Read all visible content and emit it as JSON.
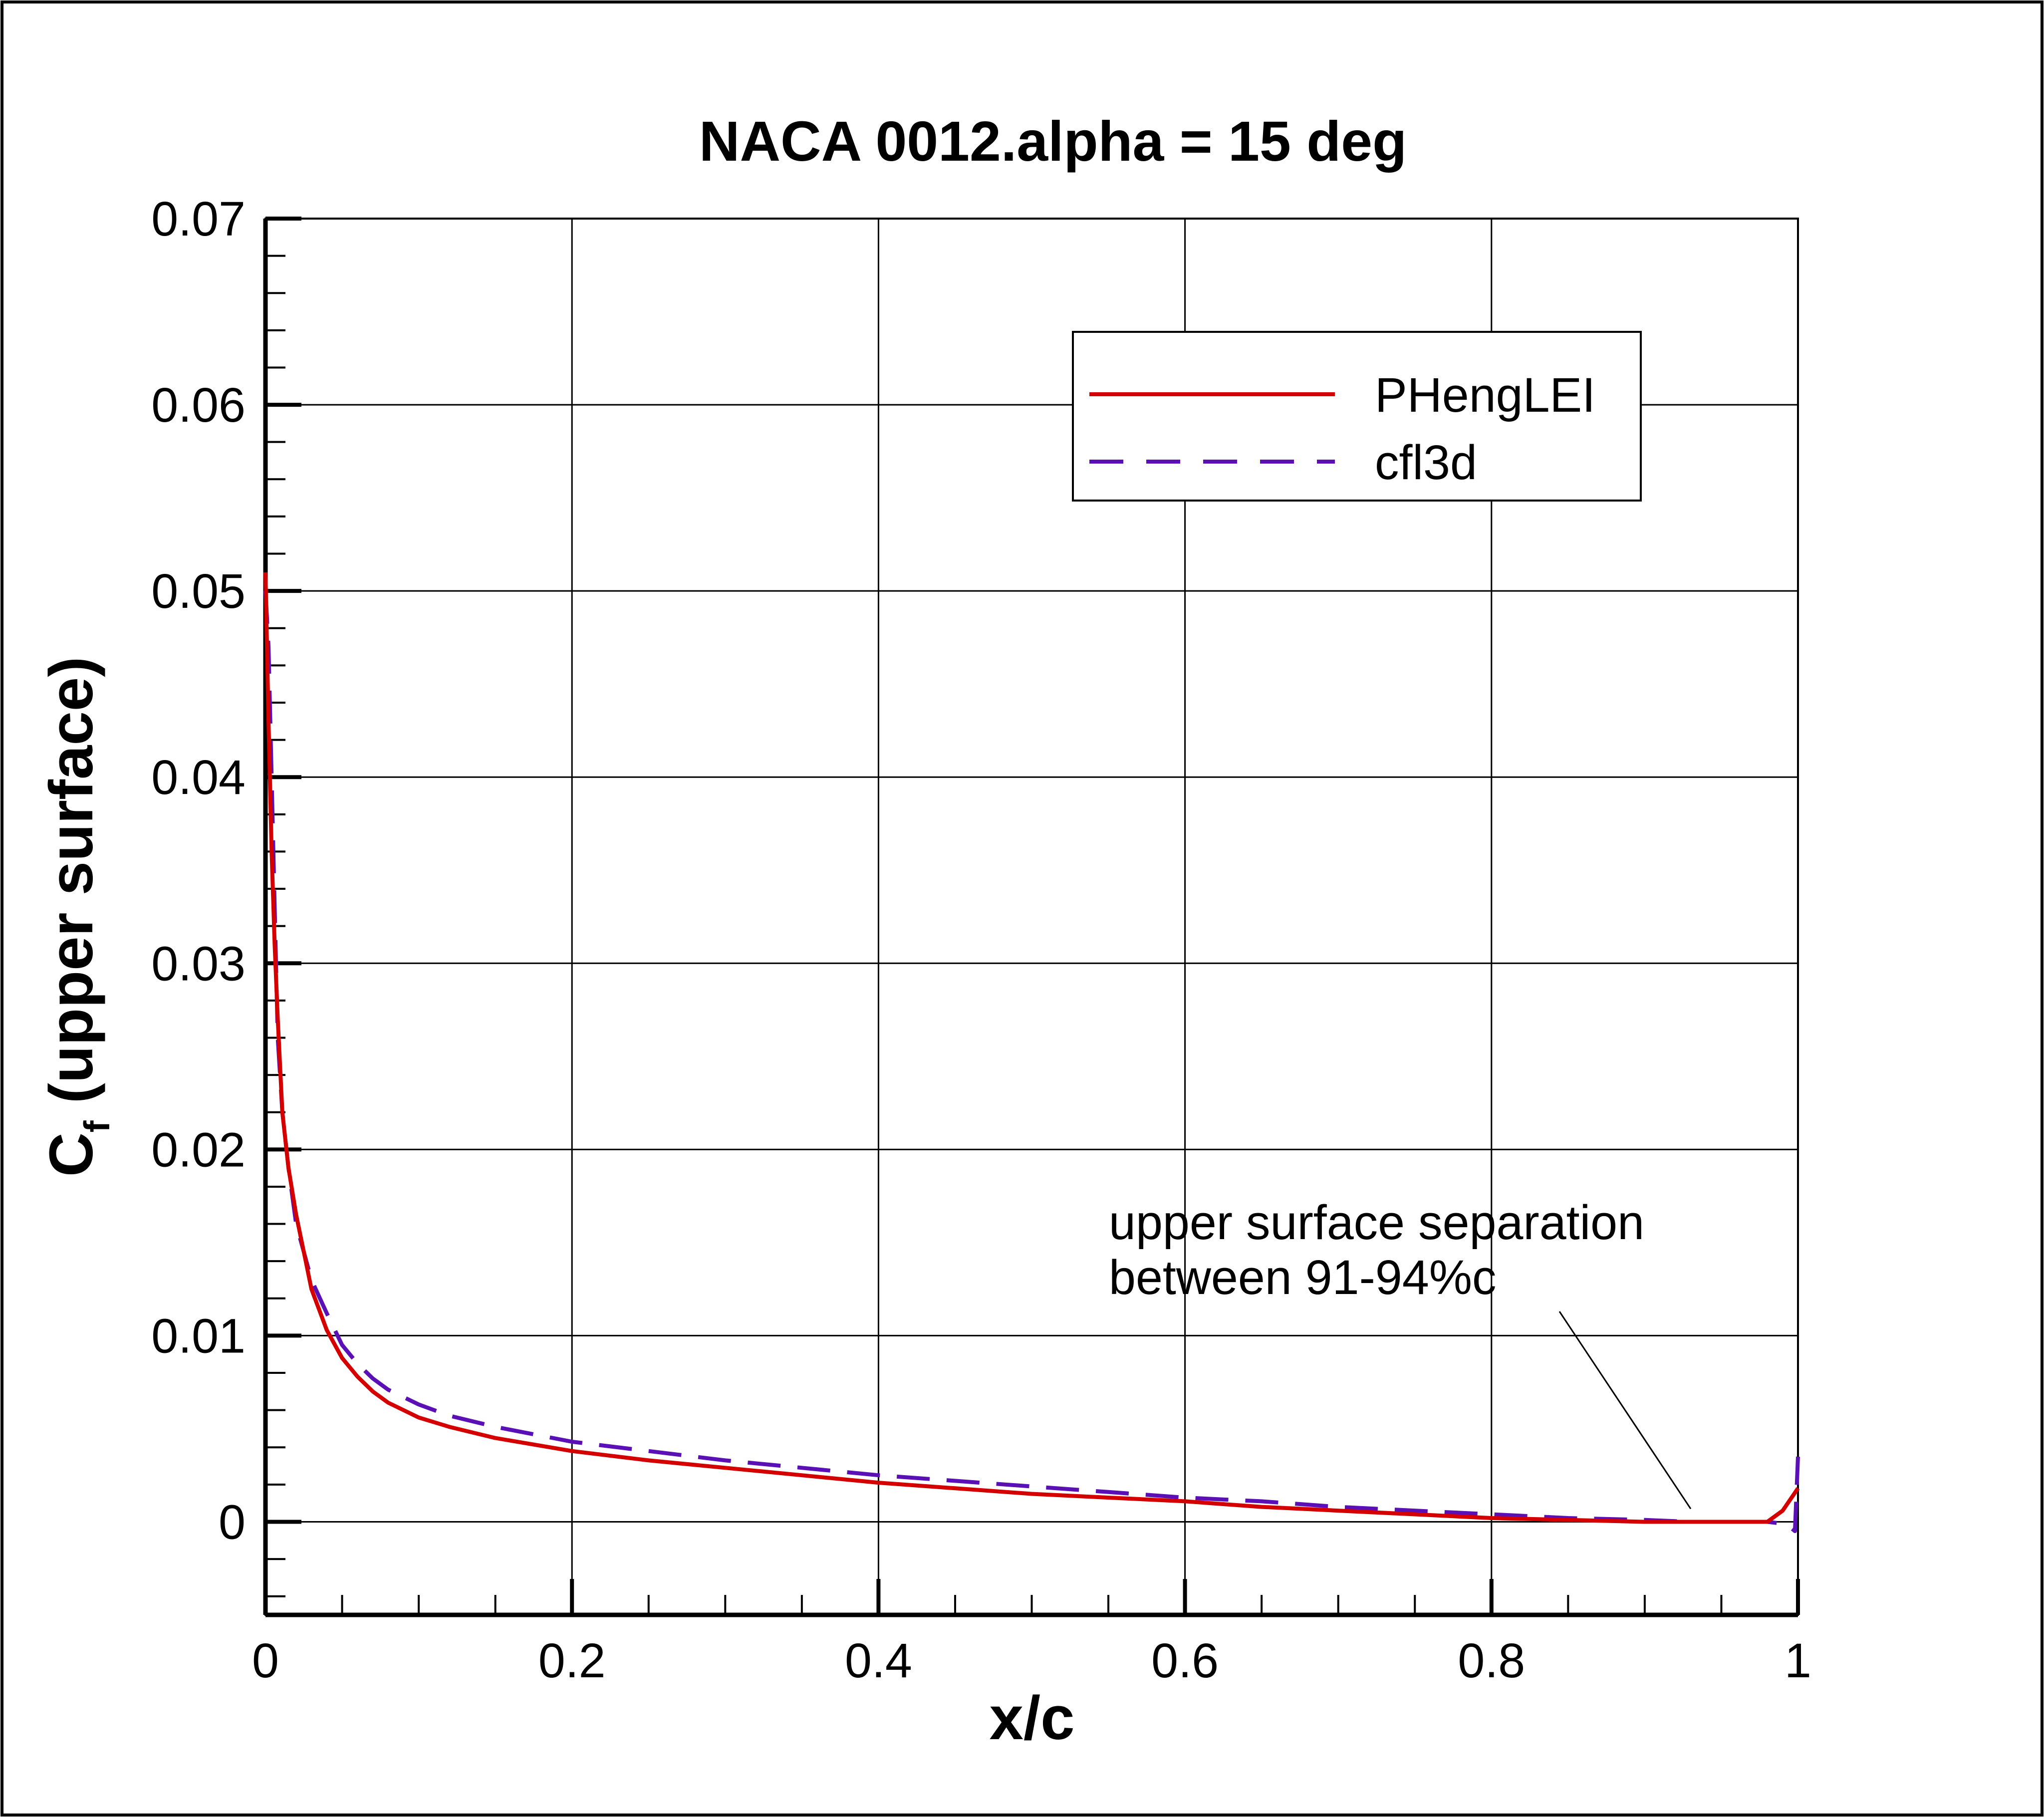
{
  "chart_data": {
    "type": "line",
    "title": "NACA 0012.alpha = 15 deg",
    "xlabel": "x/c",
    "ylabel": {
      "base": "C",
      "subscript": "f",
      "rest": " (upper surface)"
    },
    "xlim": [
      0,
      1
    ],
    "ylim": [
      -0.005,
      0.07
    ],
    "xticks": [
      0,
      0.2,
      0.4,
      0.6,
      0.8,
      1
    ],
    "xtick_labels": [
      "0",
      "0.2",
      "0.4",
      "0.6",
      "0.8",
      "1"
    ],
    "yticks": [
      0,
      0.01,
      0.02,
      0.03,
      0.04,
      0.05,
      0.06,
      0.07
    ],
    "ytick_labels": [
      "0",
      "0.01",
      "0.02",
      "0.03",
      "0.04",
      "0.05",
      "0.06",
      "0.07"
    ],
    "grid": true,
    "legend_position": "top-right",
    "series": [
      {
        "name": "PHengLEI",
        "color": "#d40000",
        "style": "solid",
        "x": [
          0,
          0.002,
          0.004,
          0.006,
          0.008,
          0.011,
          0.015,
          0.02,
          0.025,
          0.03,
          0.04,
          0.05,
          0.06,
          0.07,
          0.08,
          0.1,
          0.12,
          0.15,
          0.2,
          0.25,
          0.3,
          0.35,
          0.4,
          0.45,
          0.5,
          0.55,
          0.6,
          0.65,
          0.7,
          0.75,
          0.8,
          0.85,
          0.9,
          0.93,
          0.96,
          0.98,
          0.99,
          0.995,
          1.0
        ],
        "y": [
          0.051,
          0.043,
          0.036,
          0.031,
          0.027,
          0.022,
          0.019,
          0.0165,
          0.0145,
          0.0125,
          0.0103,
          0.0088,
          0.0078,
          0.007,
          0.0064,
          0.0056,
          0.0051,
          0.0045,
          0.0038,
          0.0033,
          0.0029,
          0.0025,
          0.0021,
          0.0018,
          0.0015,
          0.0013,
          0.0011,
          0.0008,
          0.0006,
          0.0004,
          0.0002,
          0.0001,
          0.0,
          0.0,
          0.0,
          0.0,
          0.0006,
          0.0012,
          0.0018
        ]
      },
      {
        "name": "cfl3d",
        "color": "#5a10b4",
        "style": "dashed",
        "x": [
          0,
          0.002,
          0.004,
          0.006,
          0.008,
          0.011,
          0.015,
          0.02,
          0.025,
          0.03,
          0.04,
          0.05,
          0.06,
          0.07,
          0.08,
          0.1,
          0.12,
          0.15,
          0.2,
          0.25,
          0.3,
          0.35,
          0.4,
          0.45,
          0.5,
          0.55,
          0.6,
          0.65,
          0.7,
          0.75,
          0.8,
          0.85,
          0.9,
          0.93,
          0.96,
          0.98,
          0.99,
          0.995,
          0.998,
          1.0
        ],
        "y": [
          0.05,
          0.047,
          0.04,
          0.033,
          0.026,
          0.022,
          0.019,
          0.016,
          0.0145,
          0.013,
          0.0112,
          0.0095,
          0.0085,
          0.0077,
          0.0071,
          0.0063,
          0.0057,
          0.0051,
          0.0043,
          0.0038,
          0.0033,
          0.0029,
          0.0025,
          0.0022,
          0.0019,
          0.0016,
          0.0013,
          0.0011,
          0.0008,
          0.0006,
          0.0004,
          0.0002,
          0.0001,
          0.0,
          0.0,
          0.0,
          -0.0001,
          -0.0003,
          -0.0005,
          0.0035
        ]
      }
    ],
    "annotation": {
      "lines": [
        "upper surface separation",
        "between 91-94%c"
      ],
      "points_to": {
        "x": 0.93,
        "y": 0.0007
      }
    }
  }
}
